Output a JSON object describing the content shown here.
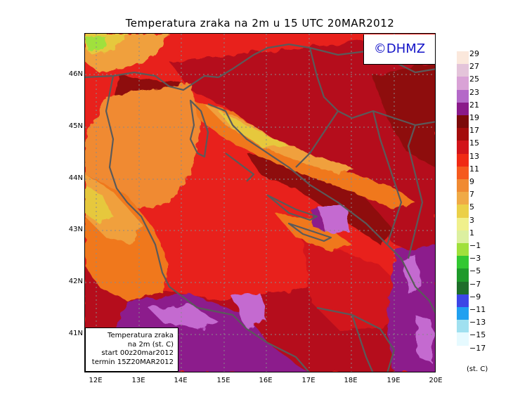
{
  "title": "Temperatura zraka na 2m u 15 UTC 20MAR2012",
  "copyright": "©DHMZ",
  "info_box": {
    "line1": "Temperatura zraka",
    "line2": "na 2m (st. C)",
    "line3": "start 00z20mar2012",
    "line4": "termin 15Z20MAR2012"
  },
  "axes": {
    "lat_labels": [
      "46N",
      "45N",
      "44N",
      "43N",
      "42N",
      "41N"
    ],
    "lon_labels": [
      "12E",
      "13E",
      "14E",
      "15E",
      "16E",
      "17E",
      "18E",
      "19E",
      "20E"
    ]
  },
  "legend": {
    "levels": [
      "29",
      "27",
      "25",
      "23",
      "21",
      "19",
      "17",
      "15",
      "13",
      "11",
      "9",
      "7",
      "5",
      "3",
      "1",
      "−1",
      "−3",
      "−5",
      "−7",
      "−9",
      "−11",
      "−13",
      "−15",
      "−17"
    ],
    "colors": [
      "#fbe8dc",
      "#e4c4da",
      "#d9a2d6",
      "#b469c8",
      "#8a1a8a",
      "#7c0a0a",
      "#a40c0c",
      "#d2141a",
      "#f02a14",
      "#f55a1e",
      "#f08a32",
      "#f0aa46",
      "#ebd048",
      "#f0f08c",
      "#dcf0a0",
      "#a0e03c",
      "#32c832",
      "#1e9a2a",
      "#1e6e2a",
      "#3c46e6",
      "#20a0f0",
      "#a0e0f0",
      "#e6faff"
    ],
    "unit": "(st. C)"
  },
  "map": {
    "region": "Adriatic Sea and surroundings, 40.3N–46.8N, 11.8E–20E",
    "contour_colors": {
      "sea_main": "#e8211c",
      "warm_inland": "#b5101a",
      "hot_core": "#8e0a0c",
      "purple_high": "#8c1a8c",
      "violet": "#c46ad0",
      "orange_cool": "#f0781e",
      "amber": "#f0a03c",
      "yellow": "#e6c83c",
      "green_cold": "#a0e03c"
    },
    "coastline_color": "#5a5a5a"
  }
}
